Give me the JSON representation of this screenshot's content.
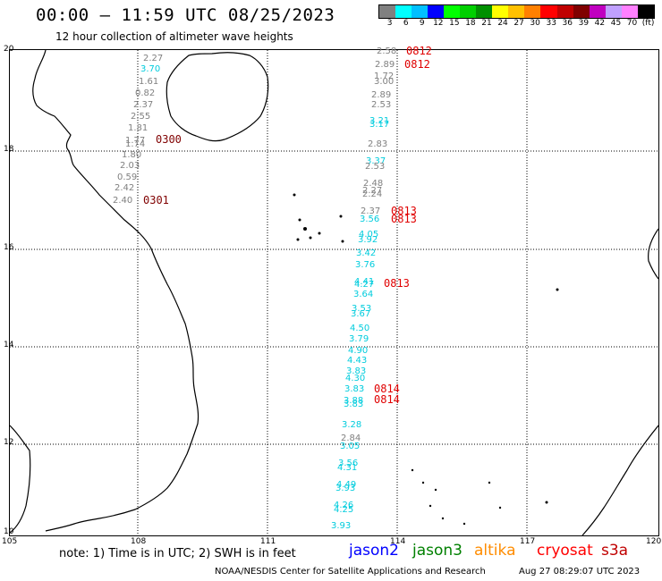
{
  "header": {
    "title": "00:00 – 11:59 UTC 08/25/2023",
    "subtitle": "12 hour collection of altimeter wave heights"
  },
  "legend": {
    "colors": [
      "#808080",
      "#00ffff",
      "#00c0ff",
      "#0000ff",
      "#00ff00",
      "#00d000",
      "#009000",
      "#ffff00",
      "#ffc000",
      "#ff8000",
      "#ff0000",
      "#c00000",
      "#800000",
      "#c000c0",
      "#c0a0ff",
      "#ff80ff",
      "#000000"
    ],
    "labels": [
      "3",
      "6",
      "9",
      "12",
      "15",
      "18",
      "21",
      "24",
      "27",
      "30",
      "33",
      "36",
      "39",
      "42",
      "45",
      "70",
      "(ft)"
    ]
  },
  "axes": {
    "lat_labels": [
      "20",
      "18",
      "16",
      "14",
      "12",
      "10"
    ],
    "lon_labels": [
      "105",
      "108",
      "111",
      "114",
      "117",
      "120"
    ]
  },
  "colors": {
    "jason2": "#0000ff",
    "jason3": "#008000",
    "altika": "#ff8c00",
    "cryosat": "#ff0000",
    "s3a": "#c00000",
    "swh_cyan": "#00ccdd",
    "swh_gray": "#808080",
    "time_dark": "#800000",
    "time_red": "#e00000"
  },
  "track_left": {
    "values": [
      "2.27",
      "3.70",
      "1.61",
      "0.82",
      "2.37",
      "2.55",
      "1.81",
      "1.77",
      "1.74",
      "1.80",
      "2.03",
      "0.59",
      "2.42",
      "2.40"
    ],
    "times": [
      "0300",
      "0301"
    ]
  },
  "track_right": {
    "values": [
      "2.58",
      "2.89",
      "1.72",
      "3.00",
      "2.89",
      "2.53",
      "3.21",
      "3.17",
      "2.83",
      "3.37",
      "2.53",
      "2.48",
      "2.27",
      "2.24",
      "2.37",
      "3.56",
      "4.05",
      "3.92",
      "3.42",
      "3.76",
      "4.41",
      "4.27",
      "3.64",
      "3.53",
      "3.67",
      "4.50",
      "3.79",
      "4.90",
      "4.43",
      "3.83",
      "4.30",
      "3.83",
      "3.88",
      "3.83",
      "3.28",
      "2.84",
      "3.05",
      "3.56",
      "4.31",
      "4.49",
      "3.93",
      "4.26",
      "4.25",
      "3.93"
    ],
    "times": [
      "0812",
      "0812",
      "0813",
      "0813",
      "0813",
      "0814",
      "0814"
    ]
  },
  "footer": {
    "note": "note:  1) Time is in UTC;  2) SWH is in feet",
    "sat_jason2": "jason2",
    "sat_jason3": "jason3",
    "sat_altika": "altika",
    "sat_cryosat": "cryosat",
    "sat_s3a": "s3a",
    "credit": "NOAA/NESDIS Center for Satellite Applications and Research",
    "stamp": "Aug 27 08:29:07 UTC 2023"
  }
}
